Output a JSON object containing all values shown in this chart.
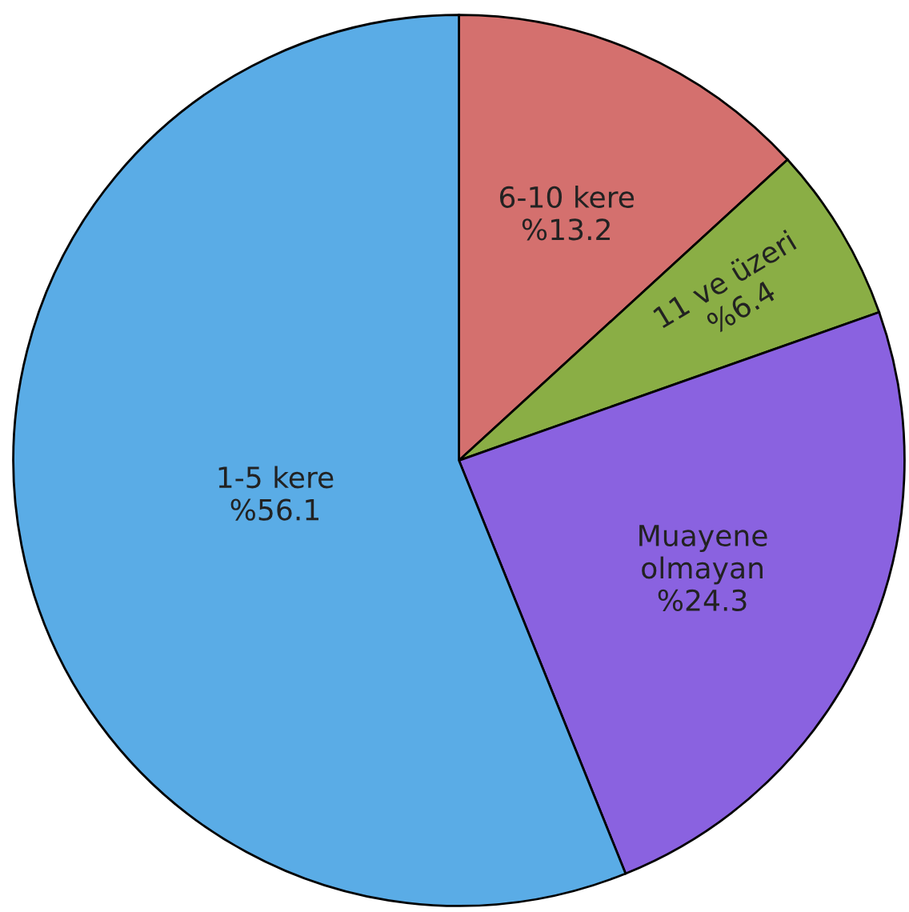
{
  "chart_data": {
    "type": "pie",
    "categories": [
      "6-10 kere",
      "11 ve üzeri",
      "Muayene olmayan",
      "1-5 kere"
    ],
    "values": [
      13.2,
      6.4,
      24.3,
      56.1
    ],
    "value_labels": [
      "%13.2",
      "%6.4",
      "%24.3",
      "%56.1"
    ],
    "colors": [
      "#d4706e",
      "#8aae45",
      "#8a62e0",
      "#5aace6"
    ]
  }
}
